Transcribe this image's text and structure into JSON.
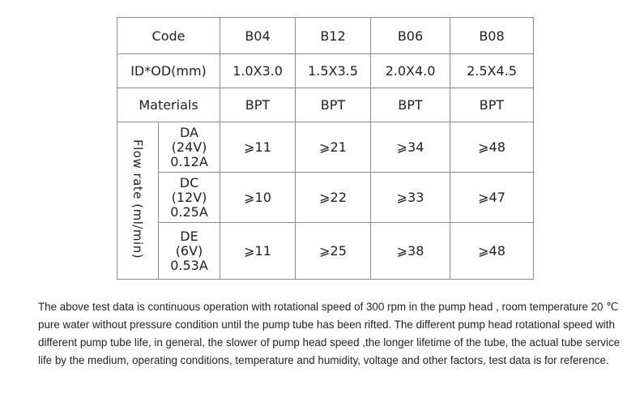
{
  "table": {
    "code_label": "Code",
    "codes": [
      "B04",
      "B12",
      "B06",
      "B08"
    ],
    "id_od_label": "ID*OD(mm)",
    "id_od": [
      "1.0X3.0",
      "1.5X3.5",
      "2.0X4.0",
      "2.5X4.5"
    ],
    "materials_label": "Materials",
    "materials": [
      "BPT",
      "BPT",
      "BPT",
      "BPT"
    ],
    "flow_rate_label": "Flow rate  (ml/min)",
    "rows": [
      {
        "code": "DA",
        "voltage": "(24V)",
        "current": "0.12A",
        "values": [
          "⩾11",
          "⩾21",
          "⩾34",
          "⩾48"
        ]
      },
      {
        "code": "DC",
        "voltage": "(12V)",
        "current": "0.25A",
        "values": [
          "⩾10",
          "⩾22",
          "⩾33",
          "⩾47"
        ]
      },
      {
        "code": "DE",
        "voltage": "(6V)",
        "current": "0.53A",
        "values": [
          "⩾11",
          "⩾25",
          "⩾38",
          "⩾48"
        ]
      }
    ]
  },
  "note": "The above test data is continuous operation with rotational speed of 300 rpm in the pump head , room temperature 20 ℃ pure water without pressure condition until the pump tube has been rifted. The different pump head rotational speed with different pump tube life, in general, the slower of pump head speed ,the longer lifetime of the tube, the actual tube service life by the medium, operating conditions, temperature and humidity, voltage and other factors, test data is for reference."
}
